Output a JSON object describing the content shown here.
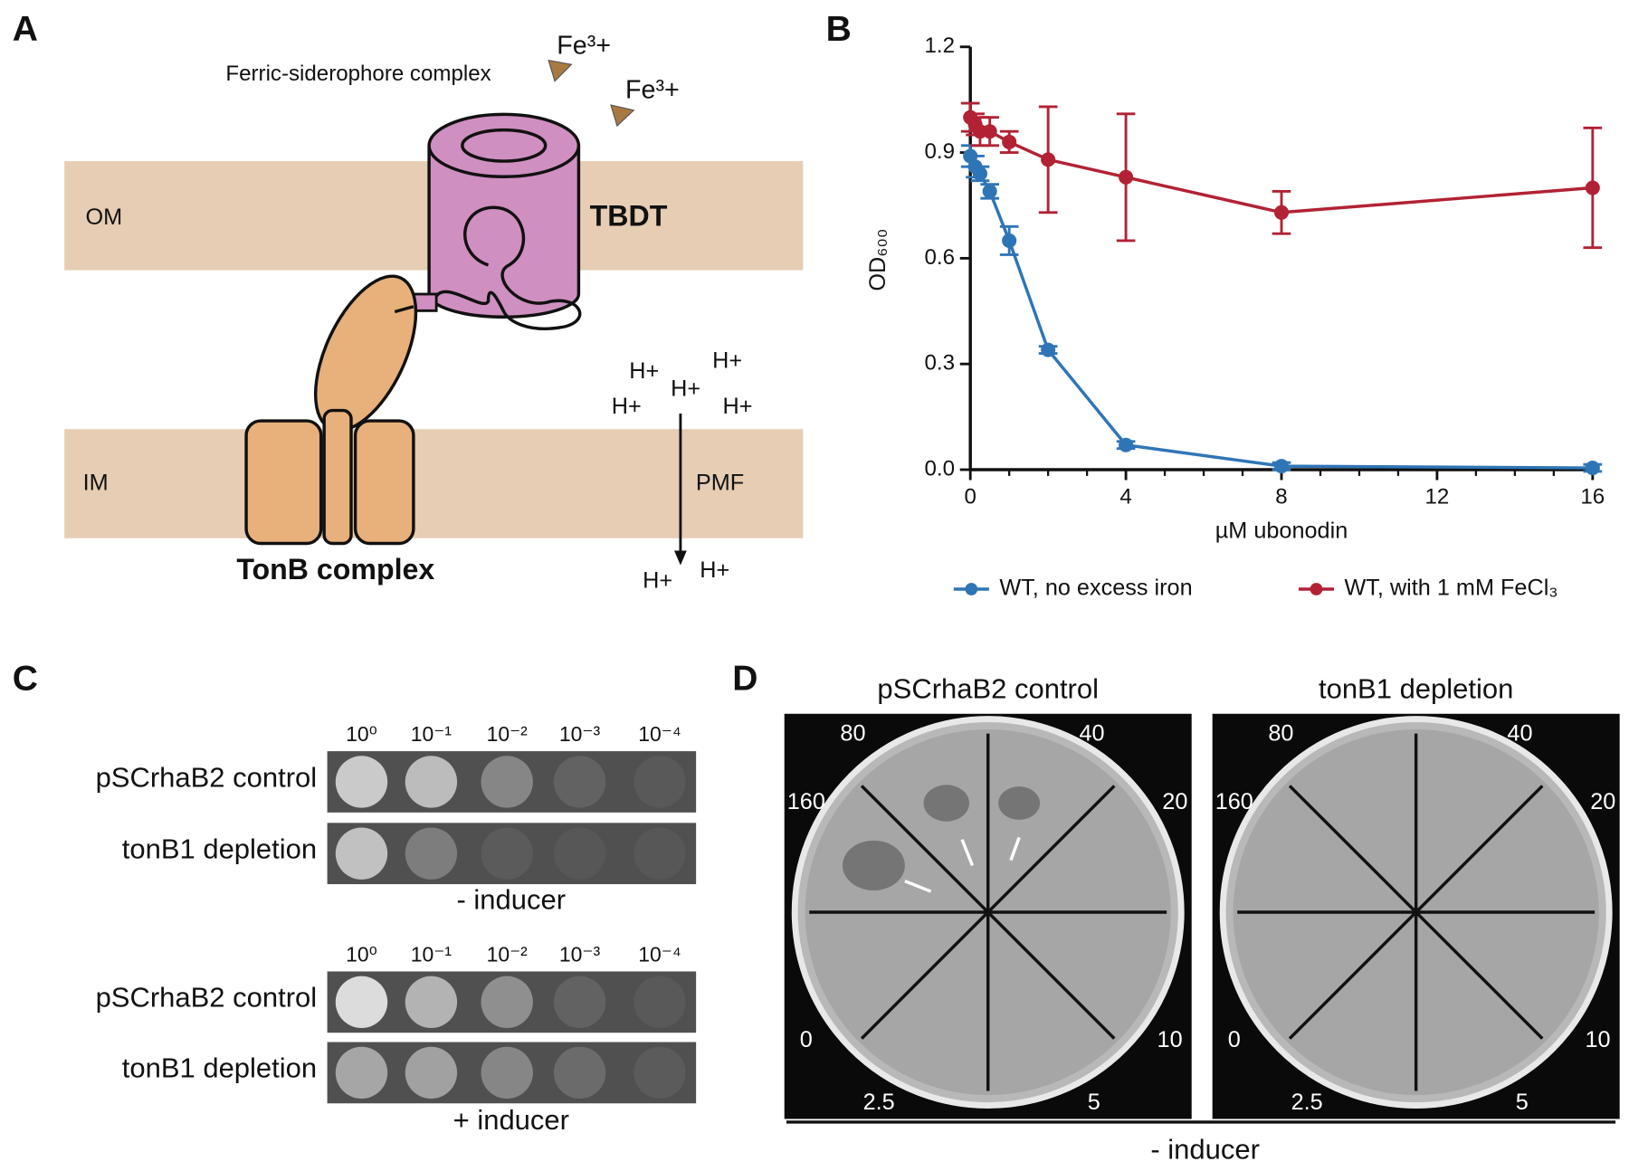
{
  "panel_a": {
    "letter": "A",
    "ligand": "Ferric-siderophore complex",
    "iron": [
      "Fe³+",
      "Fe³+"
    ],
    "outer_membrane": "OM",
    "inner_membrane": "IM",
    "transporter": "TBDT",
    "complex": "TonB complex",
    "protons": [
      "H+",
      "H+",
      "H+",
      "H+",
      "H+",
      "H+",
      "H+"
    ],
    "force": "PMF"
  },
  "chart_data": {
    "type": "line",
    "letter": "B",
    "x_label": "µM ubonodin",
    "y_label": "OD₆₀₀",
    "x": [
      0,
      0.125,
      0.25,
      0.5,
      1,
      2,
      4,
      8,
      16
    ],
    "series": [
      {
        "name": "WT, no excess iron",
        "color": "#2e75b6",
        "values": [
          0.89,
          0.86,
          0.84,
          0.79,
          0.65,
          0.34,
          0.07,
          0.01,
          0.005
        ],
        "errors": [
          0.03,
          0.03,
          0.02,
          0.02,
          0.04,
          0.01,
          0.01,
          0.01,
          0.01
        ]
      },
      {
        "name": "WT, with 1 mM FeCl₃",
        "color": "#b22234",
        "values": [
          1.0,
          0.98,
          0.96,
          0.96,
          0.93,
          0.88,
          0.83,
          0.73,
          0.8
        ],
        "errors": [
          0.04,
          0.03,
          0.04,
          0.04,
          0.03,
          0.15,
          0.18,
          0.06,
          0.17
        ]
      }
    ],
    "xlim": [
      0,
      16
    ],
    "xticks": [
      0,
      4,
      8,
      12,
      16
    ],
    "ylim": [
      0,
      1.2
    ],
    "yticks": [
      {
        "value": 0,
        "label": "0.0"
      },
      0.3,
      0.6,
      0.9,
      1.2
    ],
    "legend": "bottom"
  },
  "panel_c": {
    "letter": "C",
    "dilutions": [
      "10⁰",
      "10⁻¹",
      "10⁻²",
      "10⁻³",
      "10⁻⁴"
    ],
    "strains": [
      "pSCrhaB2 control",
      "tonB1 depletion"
    ],
    "conditions": [
      "- inducer",
      "+ inducer"
    ]
  },
  "panel_d": {
    "letter": "D",
    "plates": [
      {
        "title": "pSCrhaB2 control",
        "labels": [
          "80",
          "40",
          "160",
          "20",
          "0",
          "10",
          "2.5",
          "5"
        ]
      },
      {
        "title": "tonB1 depletion",
        "labels": [
          "80",
          "40",
          "160",
          "20",
          "0",
          "10",
          "2.5",
          "5"
        ]
      }
    ],
    "condition": "- inducer"
  }
}
